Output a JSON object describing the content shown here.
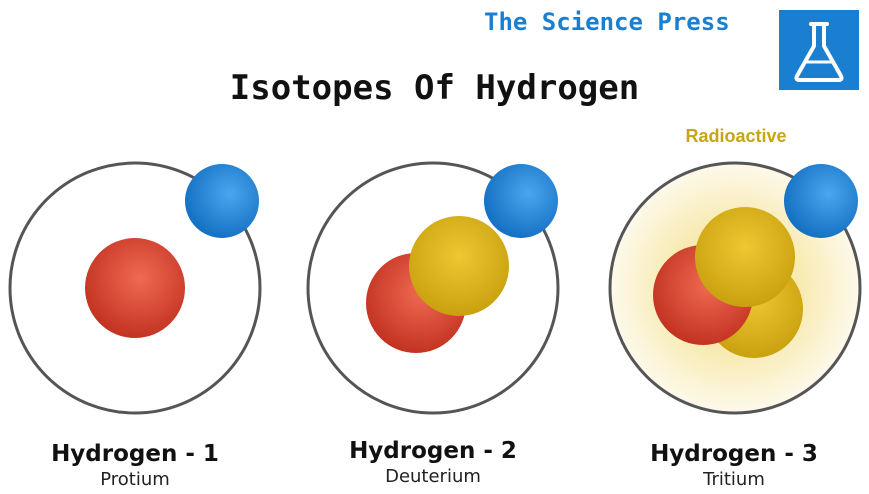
{
  "header": {
    "brand": "The Science Press",
    "title": "Isotopes Of Hydrogen",
    "logo_icon": "flask-icon"
  },
  "colors": {
    "brand_blue": "#1a7fd1",
    "proton_red": "#d4402c",
    "neutron_yellow": "#d8b11c",
    "electron_blue": "#1f86d8",
    "radioactive_text": "#c8a515",
    "orbit_stroke": "#555555"
  },
  "isotopes": [
    {
      "name": "Hydrogen - 1",
      "common_name": "Protium",
      "protons": 1,
      "neutrons": 0,
      "electrons": 1,
      "radioactive": false
    },
    {
      "name": "Hydrogen - 2",
      "common_name": "Deuterium",
      "protons": 1,
      "neutrons": 1,
      "electrons": 1,
      "radioactive": false
    },
    {
      "name": "Hydrogen - 3",
      "common_name": "Tritium",
      "protons": 1,
      "neutrons": 2,
      "electrons": 1,
      "radioactive": true,
      "badge": "Radioactive"
    }
  ]
}
